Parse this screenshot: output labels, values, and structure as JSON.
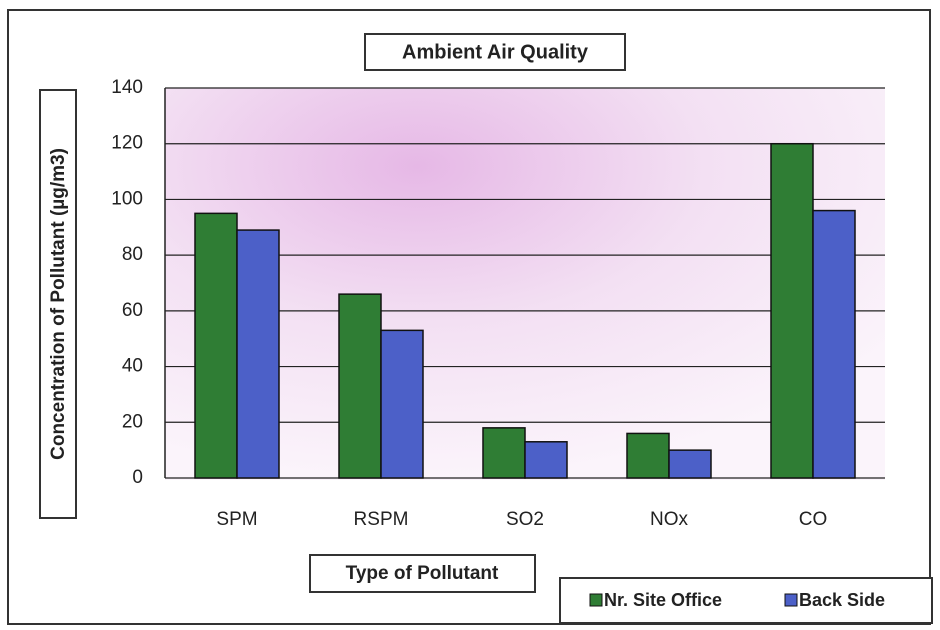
{
  "chart_data": {
    "type": "bar",
    "title": "Ambient Air Quality",
    "x_label": "Type of Pollutant",
    "y_label": "Concentration of Pollutant (µg/m3)",
    "categories": [
      "SPM",
      "RSPM",
      "SO2",
      "NOx",
      "CO"
    ],
    "series": [
      {
        "name": "Nr. Site Office",
        "color": "#2f7d34",
        "values": [
          95,
          66,
          18,
          16,
          120
        ]
      },
      {
        "name": "Back Side",
        "color": "#4c60c8",
        "values": [
          89,
          53,
          13,
          10,
          96
        ]
      }
    ],
    "ylim": [
      0,
      140
    ],
    "yticks": [
      0,
      20,
      40,
      60,
      80,
      100,
      120,
      140
    ],
    "grid": true
  }
}
